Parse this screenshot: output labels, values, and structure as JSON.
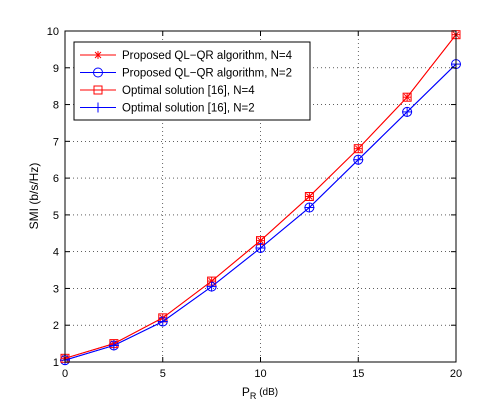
{
  "chart_data": {
    "type": "line",
    "title": "",
    "xlabel": "P",
    "xlabel_sub": "R",
    "xlabel_unit": " (dB)",
    "ylabel": "SMI (b/s/Hz)",
    "xlim": [
      0,
      20
    ],
    "ylim": [
      1,
      10
    ],
    "xticks": [
      0,
      5,
      10,
      15,
      20
    ],
    "yticks": [
      1,
      2,
      3,
      4,
      5,
      6,
      7,
      8,
      9,
      10
    ],
    "grid": true,
    "legend_position": "top-left",
    "x": [
      0,
      2.5,
      5,
      7.5,
      10,
      12.5,
      15,
      17.5,
      20
    ],
    "series": [
      {
        "name": "Proposed QL−QR algorithm, N=4",
        "marker": "star",
        "color": "#ff0000",
        "values": [
          1.1,
          1.5,
          2.2,
          3.2,
          4.3,
          5.5,
          6.8,
          8.2,
          9.9
        ]
      },
      {
        "name": "Proposed QL−QR algorithm, N=2",
        "marker": "circle",
        "color": "#0000ff",
        "values": [
          1.05,
          1.45,
          2.1,
          3.05,
          4.1,
          5.2,
          6.5,
          7.8,
          9.1
        ]
      },
      {
        "name": "Optimal solution [16], N=4",
        "marker": "square",
        "color": "#ff0000",
        "values": [
          1.1,
          1.5,
          2.2,
          3.2,
          4.3,
          5.5,
          6.8,
          8.2,
          9.9
        ]
      },
      {
        "name": "Optimal solution [16], N=2",
        "marker": "plus",
        "color": "#0000ff",
        "values": [
          1.05,
          1.45,
          2.1,
          3.05,
          4.1,
          5.2,
          6.5,
          7.8,
          9.1
        ]
      }
    ]
  }
}
